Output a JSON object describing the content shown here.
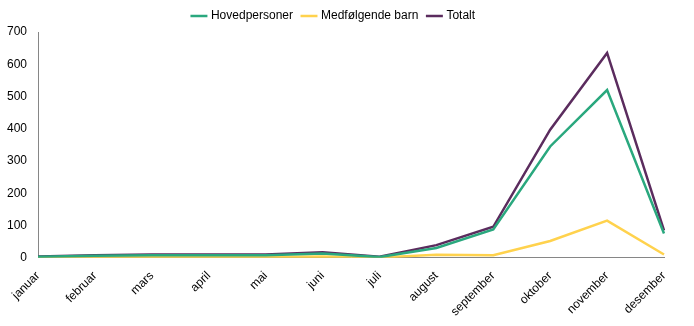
{
  "chart_data": {
    "type": "line",
    "categories": [
      "januar",
      "februar",
      "mars",
      "april",
      "mai",
      "juni",
      "juli",
      "august",
      "september",
      "oktober",
      "november",
      "desember"
    ],
    "series": [
      {
        "name": "Hovedpersoner",
        "color": "#2aa87e",
        "values": [
          3,
          6,
          8,
          8,
          8,
          13,
          2,
          30,
          88,
          345,
          520,
          75
        ]
      },
      {
        "name": "Medfølgende barn",
        "color": "#ffd24d",
        "values": [
          1,
          2,
          2,
          2,
          2,
          4,
          1,
          9,
          8,
          52,
          115,
          10
        ]
      },
      {
        "name": "Totalt",
        "color": "#5b2c5e",
        "values": [
          4,
          8,
          10,
          10,
          10,
          17,
          3,
          39,
          96,
          397,
          635,
          85
        ]
      }
    ],
    "ylim": [
      0,
      700
    ],
    "yticks": [
      0,
      100,
      200,
      300,
      400,
      500,
      600,
      700
    ],
    "grid": false,
    "legend": "top"
  }
}
